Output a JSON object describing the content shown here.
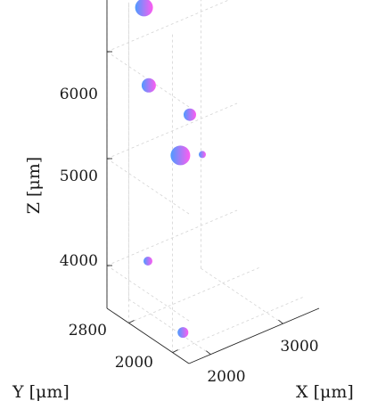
{
  "chart_data": {
    "type": "scatter",
    "subtype": "3d-bubble",
    "title": "",
    "xlabel": "X [μm]",
    "ylabel": "Y [μm]",
    "zlabel": "Z [μm]",
    "xlim": [
      1700,
      3500
    ],
    "ylim": [
      1700,
      3200
    ],
    "zlim": [
      3600,
      6600
    ],
    "xticks": [
      2000,
      3000
    ],
    "yticks": [
      2000,
      2800
    ],
    "zticks": [
      4000,
      5000,
      6000
    ],
    "xtick_labels": [
      "2000",
      "3000"
    ],
    "ytick_labels": [
      "2000",
      "2800"
    ],
    "ztick_labels": [
      "4000",
      "5000",
      "6000"
    ],
    "grid": true,
    "marker_gradient": [
      "#4d9bff",
      "#ff5cf0"
    ],
    "points": [
      {
        "x": 2100,
        "y": 3050,
        "z": 6350,
        "r": 10
      },
      {
        "x": 1900,
        "y": 2700,
        "z": 5800,
        "r": 8
      },
      {
        "x": 1960,
        "y": 2200,
        "z": 5300,
        "r": 11
      },
      {
        "x": 2620,
        "y": 2900,
        "z": 5250,
        "r": 7
      },
      {
        "x": 2830,
        "y": 2950,
        "z": 4800,
        "r": 4
      },
      {
        "x": 1700,
        "y": 2450,
        "z": 4300,
        "r": 5
      },
      {
        "x": 1920,
        "y": 2100,
        "z": 3690,
        "r": 6
      }
    ]
  }
}
